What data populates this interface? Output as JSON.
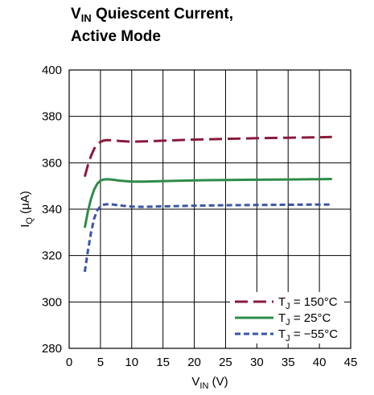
{
  "title": {
    "line1_main": "V",
    "line1_sub": "IN",
    "line1_rest": " Quiescent Current,",
    "line2": "Active Mode"
  },
  "chart_data": {
    "type": "line",
    "xlabel_main": "V",
    "xlabel_sub": "IN",
    "xlabel_unit": " (V)",
    "ylabel_main": "I",
    "ylabel_sub": "Q",
    "ylabel_unit": " (μA)",
    "xlim": [
      0,
      45
    ],
    "ylim": [
      280,
      400
    ],
    "xticks": [
      0,
      5,
      10,
      15,
      20,
      25,
      30,
      35,
      40,
      45
    ],
    "yticks": [
      280,
      300,
      320,
      340,
      360,
      380,
      400
    ],
    "grid": true,
    "legend_position": "bottom-right",
    "series": [
      {
        "label_main": "T",
        "label_sub": "J",
        "label_rest": " = 150°C",
        "color": "#8b1a3a",
        "dash": "long-dash",
        "x": [
          2.5,
          3.0,
          3.5,
          4.0,
          4.5,
          5.0,
          5.5,
          6.0,
          7.0,
          8.0,
          10.0,
          12.0,
          15.0,
          20.0,
          25.0,
          30.0,
          35.0,
          40.0,
          42.0
        ],
        "y": [
          354,
          359,
          363,
          366,
          368,
          369,
          369.6,
          369.8,
          369.7,
          369.4,
          369.1,
          369.2,
          369.5,
          370.0,
          370.3,
          370.6,
          370.8,
          371.0,
          371.1
        ]
      },
      {
        "label_main": "T",
        "label_sub": "J",
        "label_rest": " = 25°C",
        "color": "#2e8b4a",
        "dash": "solid",
        "x": [
          2.5,
          3.0,
          3.5,
          4.0,
          4.5,
          5.0,
          5.5,
          6.0,
          7.0,
          8.0,
          10.0,
          12.0,
          15.0,
          20.0,
          25.0,
          30.0,
          35.0,
          40.0,
          42.0
        ],
        "y": [
          332,
          339,
          344.5,
          348.5,
          351,
          352.3,
          352.8,
          352.9,
          352.7,
          352.3,
          351.9,
          351.9,
          352.1,
          352.4,
          352.6,
          352.7,
          352.8,
          352.9,
          353.0
        ]
      },
      {
        "label_main": "T",
        "label_sub": "J",
        "label_rest": " = −55°C",
        "color": "#3a55a8",
        "dash": "short-dash",
        "x": [
          2.5,
          3.0,
          3.5,
          4.0,
          4.5,
          5.0,
          5.5,
          6.0,
          7.0,
          8.0,
          10.0,
          12.0,
          15.0,
          20.0,
          25.0,
          30.0,
          35.0,
          40.0,
          42.0
        ],
        "y": [
          313,
          322,
          330,
          336,
          339.5,
          341.2,
          341.9,
          342.1,
          342.0,
          341.6,
          341.1,
          341.0,
          341.2,
          341.5,
          341.7,
          341.8,
          341.9,
          342.0,
          342.0
        ]
      }
    ]
  }
}
